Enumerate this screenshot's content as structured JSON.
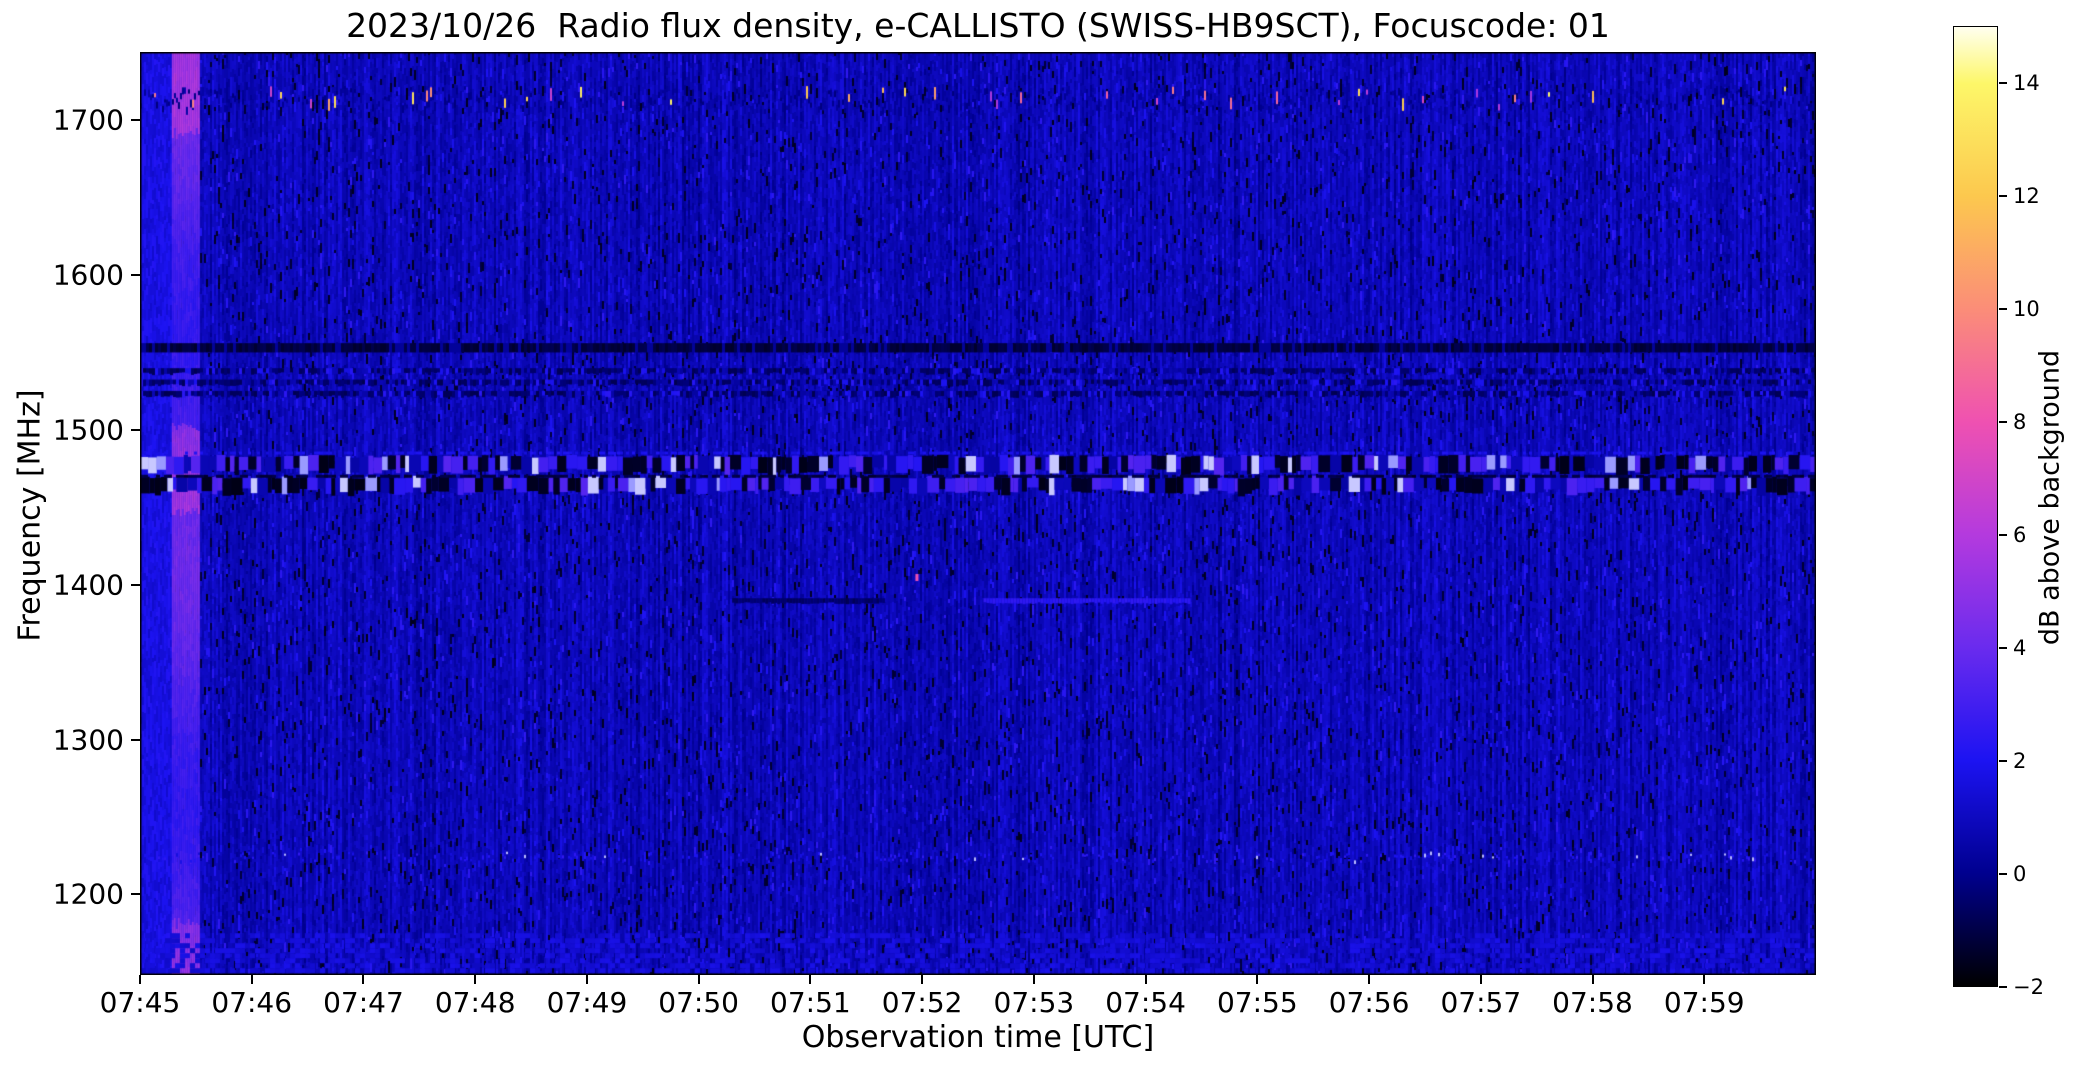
{
  "figure": {
    "background_color": "#ffffff",
    "text_color": "#000000"
  },
  "chart_data": {
    "type": "heatmap",
    "title": "2023/10/26  Radio flux density, e-CALLISTO (SWISS-HB9SCT), Focuscode: 01",
    "xlabel": "Observation time [UTC]",
    "ylabel": "Frequency [MHz]",
    "x_ticks": [
      "07:45",
      "07:46",
      "07:47",
      "07:48",
      "07:49",
      "07:50",
      "07:51",
      "07:52",
      "07:53",
      "07:54",
      "07:55",
      "07:56",
      "07:57",
      "07:58",
      "07:59"
    ],
    "x_range_minutes_after_0745": [
      0,
      15
    ],
    "y_ticks": [
      1700,
      1600,
      1500,
      1400,
      1300,
      1200
    ],
    "y_range_mhz": [
      1148,
      1744
    ],
    "grid": false,
    "legend": "none",
    "background_level_db": 0.6,
    "colorbar": {
      "label": "dB above background",
      "ticks": [
        14,
        12,
        10,
        8,
        6,
        4,
        2,
        0,
        -2
      ],
      "range_db": [
        -2,
        15
      ],
      "position": "right",
      "colormap_stops": [
        {
          "v": -2,
          "c": "#000000"
        },
        {
          "v": 0,
          "c": "#00008f"
        },
        {
          "v": 2,
          "c": "#1c13f2"
        },
        {
          "v": 4,
          "c": "#6a2bee"
        },
        {
          "v": 6,
          "c": "#b43ade"
        },
        {
          "v": 8,
          "c": "#ef51b1"
        },
        {
          "v": 10,
          "c": "#fb8d78"
        },
        {
          "v": 12,
          "c": "#fcc84e"
        },
        {
          "v": 14,
          "c": "#fdf769"
        },
        {
          "v": 15,
          "c": "#ffffef"
        }
      ]
    },
    "features": [
      {
        "name": "startup-bright-column",
        "type": "vstripe",
        "t0": 0,
        "t1": 0.285,
        "level_db": 1.5
      },
      {
        "name": "calibration-stripe",
        "type": "calibration",
        "t0": 0.285,
        "t1": 0.52,
        "level_db": 4.0
      },
      {
        "name": "rfi-speckle-band",
        "type": "speckle_row",
        "f0": 1706,
        "f1": 1722,
        "density": 0.05,
        "min_db": 5,
        "max_db": 14
      },
      {
        "name": "dark-line",
        "type": "dark_row",
        "f0": 1550,
        "f1": 1556,
        "level_db": -1.4
      },
      {
        "name": "structured-dark-band",
        "type": "dark_band",
        "f0": 1522,
        "f1": 1543
      },
      {
        "name": "strong-rfi-band",
        "type": "rfi_band",
        "f0": 1458,
        "f1": 1483
      },
      {
        "name": "faint-absorption-1390",
        "type": "segment",
        "f": 1390,
        "t0": 5.3,
        "t1": 6.65,
        "level_db": -0.8
      },
      {
        "name": "faint-emission-1390",
        "type": "segment",
        "f": 1390,
        "t0": 7.55,
        "t1": 9.4,
        "level_db": 2.1
      },
      {
        "name": "faint-speckle-row-1225",
        "type": "speckle_row_faint",
        "f0": 1222,
        "f1": 1228,
        "density": 0.3
      },
      {
        "name": "bottom-texture-band",
        "type": "bright_band",
        "f0": 1152,
        "f1": 1175,
        "boost_db": 0.55
      },
      {
        "name": "pink-speck",
        "type": "dot",
        "f": 1405,
        "t": 6.94,
        "level_db": 8
      }
    ]
  }
}
